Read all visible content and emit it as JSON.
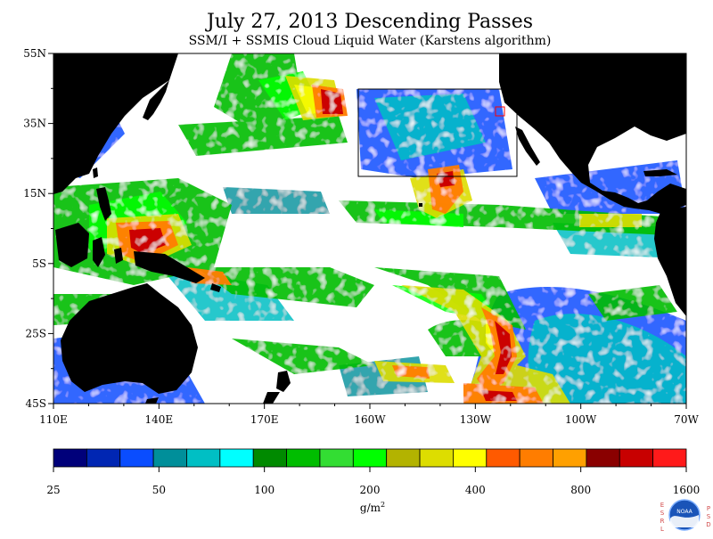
{
  "title": "July 27, 2013  Descending Passes",
  "subtitle": "SSM/I + SSMIS Cloud Liquid Water (Karstens algorithm)",
  "map": {
    "lat_labels": [
      "55N",
      "35N",
      "15N",
      "5S",
      "25S",
      "45S"
    ],
    "lon_labels": [
      "110E",
      "140E",
      "170E",
      "160W",
      "130W",
      "100W",
      "70W"
    ],
    "colors": {
      "land": "#000000",
      "ocean_background": "#ffffff",
      "region_box": "#000000",
      "region_box_small": "#ff0000"
    }
  },
  "colorbar": {
    "colors": [
      "#00007a",
      "#0026b3",
      "#0a4dff",
      "#008f9a",
      "#00bfc4",
      "#00ffff",
      "#008a00",
      "#00bd00",
      "#33dd33",
      "#00ff00",
      "#b3b300",
      "#dddd00",
      "#ffff00",
      "#ff5a00",
      "#ff7d00",
      "#ffa000",
      "#8a0000",
      "#c80000",
      "#ff1a1a"
    ],
    "tick_labels": [
      "25",
      "50",
      "100",
      "200",
      "400",
      "800",
      "1600"
    ],
    "unit_base": "g/m",
    "unit_exp": "2"
  },
  "logo": {
    "left_letters": [
      "E",
      "S",
      "R",
      "L"
    ],
    "right_letters": [
      "P",
      "S",
      "D"
    ],
    "center_text": "NOAA"
  }
}
